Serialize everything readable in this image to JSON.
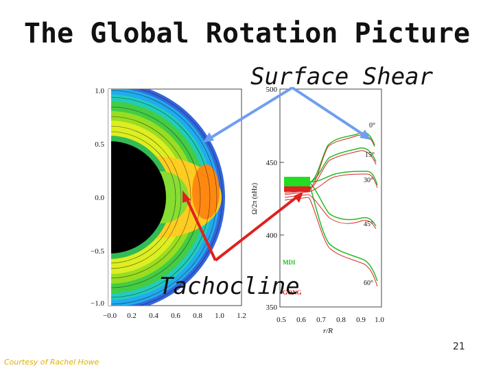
{
  "slide": {
    "title": "The Global Rotation Picture",
    "page_number": "21",
    "credit": "Courtesy of Rachel Howe"
  },
  "annotations": {
    "surface_shear": "Surface Shear",
    "tachocline": "Tachocline"
  },
  "colors": {
    "arrow_blue": "#6f9ef0",
    "arrow_red": "#e02020",
    "mdi": "#22bb22",
    "gong": "#dd2222"
  },
  "left_plot": {
    "y_ticks": [
      "1.0",
      "0.5",
      "0.0",
      "−0.5",
      "−1.0"
    ],
    "x_ticks": [
      "−0.0",
      "0.2",
      "0.4",
      "0.6",
      "0.8",
      "1.0",
      "1.2"
    ]
  },
  "right_plot": {
    "y_ticks": [
      "500",
      "450",
      "400",
      "350"
    ],
    "x_ticks": [
      "0.5",
      "0.6",
      "0.7",
      "0.8",
      "0.9",
      "1.0"
    ],
    "xlabel": "r/R",
    "ylabel": "Ω/2π  (nHz)",
    "latitudes": [
      "0°",
      "15°",
      "30°",
      "45°",
      "60°"
    ],
    "legend": [
      "MDI",
      "GONG"
    ]
  }
}
